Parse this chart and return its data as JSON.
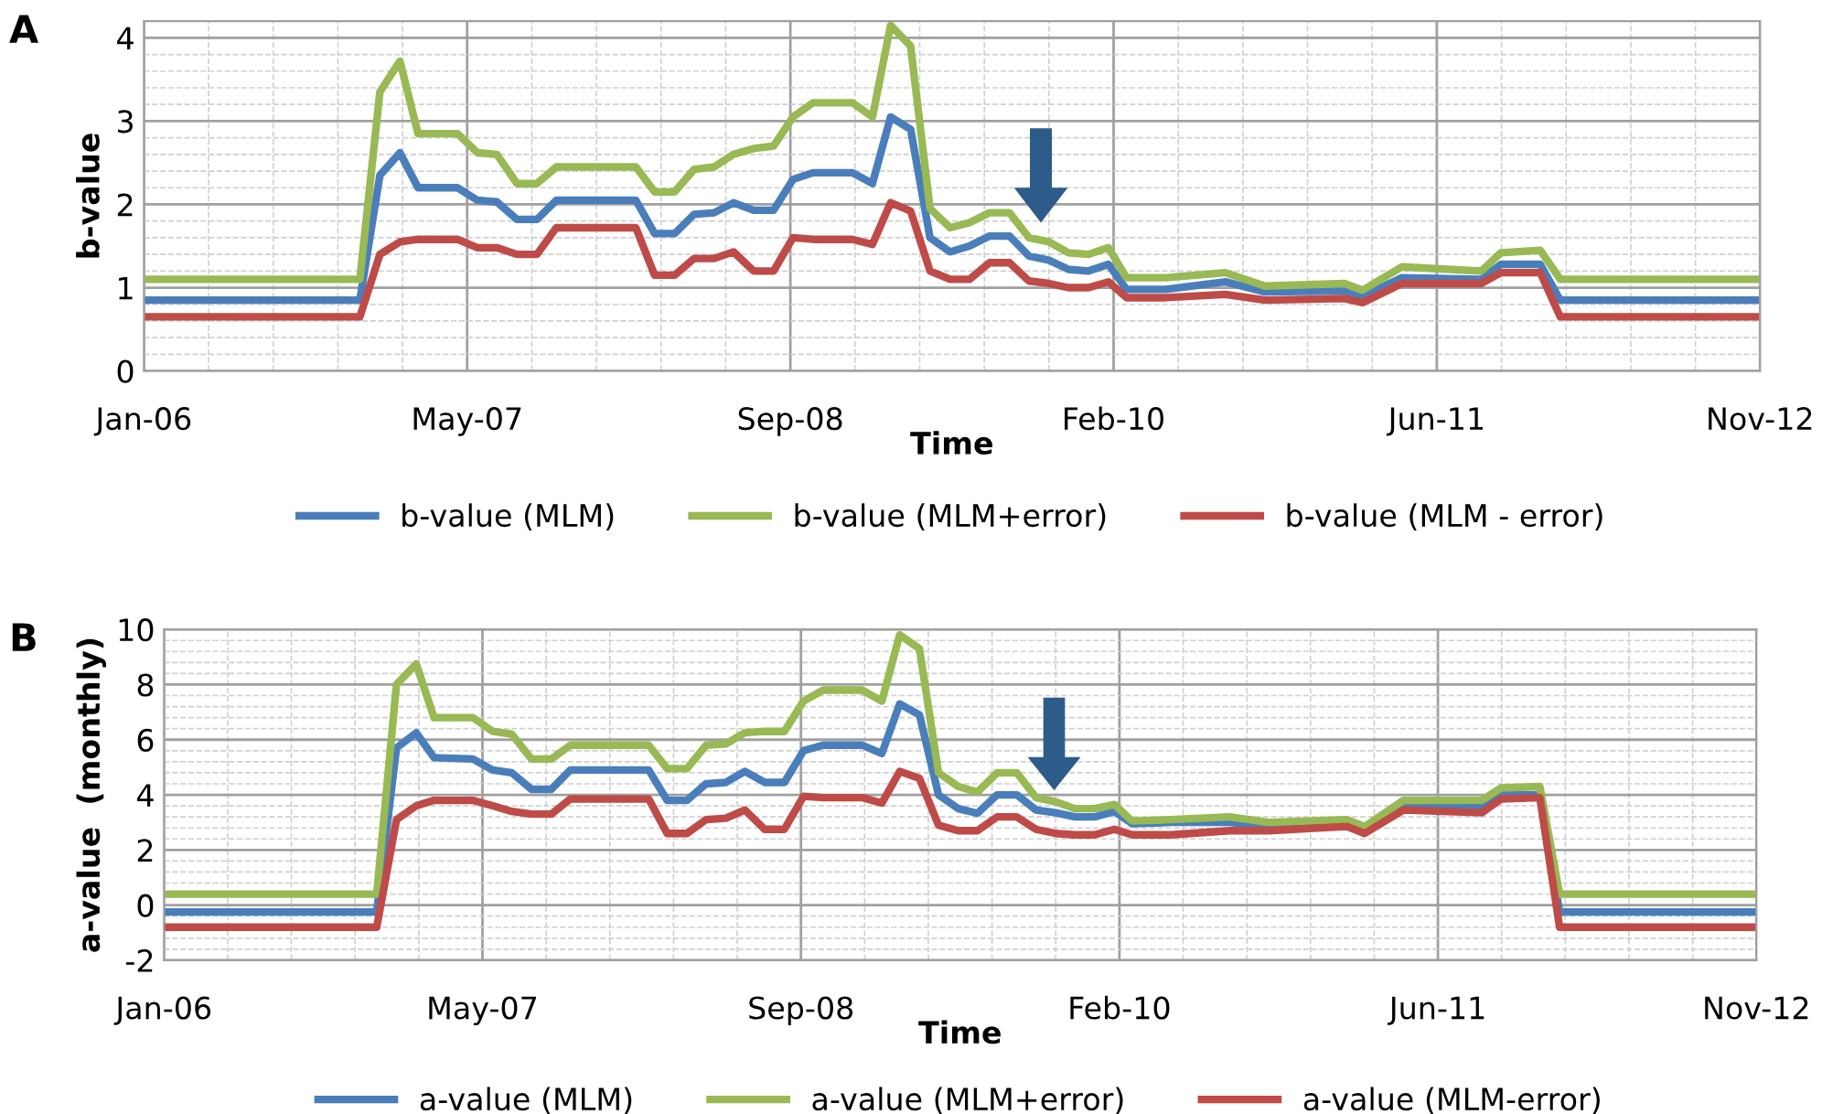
{
  "chart_data": [
    {
      "type": "line",
      "xlabel": "Time",
      "ylabel": "b-value",
      "annotations": [
        "A"
      ],
      "legend": "bottom",
      "grid": true,
      "marker": "none",
      "line_style": "solid",
      "x": [
        "2006-01",
        "2006-12",
        "2007-01",
        "2007-02",
        "2007-03",
        "2007-05",
        "2007-06",
        "2007-07",
        "2007-08",
        "2007-09",
        "2007-10",
        "2008-02",
        "2008-03",
        "2008-04",
        "2008-05",
        "2008-06",
        "2008-07",
        "2008-08",
        "2008-09",
        "2008-10",
        "2008-11",
        "2009-01",
        "2009-02",
        "2009-03",
        "2009-04",
        "2009-05",
        "2009-06",
        "2009-07",
        "2009-08",
        "2009-09",
        "2009-10",
        "2009-11",
        "2009-12",
        "2010-01",
        "2010-02",
        "2010-03",
        "2010-05",
        "2010-08",
        "2010-10",
        "2011-02",
        "2011-03",
        "2011-05",
        "2011-09",
        "2011-10",
        "2011-12",
        "2012-01",
        "2012-11"
      ],
      "xlim": [
        "2006-01-01",
        "2012-11-05"
      ],
      "xticks": [
        {
          "value": "2006-01-01",
          "label": "Jan-06"
        },
        {
          "value": "2007-05-16",
          "label": "May-07"
        },
        {
          "value": "2008-09-27",
          "label": "Sep-08"
        },
        {
          "value": "2010-02-09",
          "label": "Feb-10"
        },
        {
          "value": "2011-06-24",
          "label": "Jun-11"
        },
        {
          "value": "2012-11-05",
          "label": "Nov-12"
        }
      ],
      "ylim": [
        0,
        4.2
      ],
      "yticks": [
        0,
        1,
        2,
        3,
        4
      ],
      "series": [
        {
          "name": "b-value (MLM)",
          "color": "#4a7ebb",
          "values": [
            0.85,
            0.85,
            2.35,
            2.62,
            2.2,
            2.2,
            2.05,
            2.03,
            1.82,
            1.82,
            2.05,
            2.05,
            1.65,
            1.65,
            1.88,
            1.9,
            2.02,
            1.93,
            1.93,
            2.3,
            2.38,
            2.38,
            2.25,
            3.05,
            2.9,
            1.6,
            1.43,
            1.5,
            1.62,
            1.62,
            1.38,
            1.33,
            1.22,
            1.2,
            1.28,
            0.98,
            0.98,
            1.07,
            0.95,
            0.96,
            0.9,
            1.12,
            1.1,
            1.28,
            1.28,
            0.85,
            0.85
          ]
        },
        {
          "name": "b-value (MLM+error)",
          "color": "#98b954",
          "values": [
            1.1,
            1.1,
            3.35,
            3.72,
            2.85,
            2.85,
            2.62,
            2.6,
            2.25,
            2.25,
            2.45,
            2.45,
            2.15,
            2.15,
            2.42,
            2.45,
            2.6,
            2.67,
            2.7,
            3.05,
            3.22,
            3.22,
            3.05,
            4.15,
            3.9,
            1.95,
            1.72,
            1.78,
            1.9,
            1.9,
            1.6,
            1.55,
            1.42,
            1.4,
            1.48,
            1.12,
            1.12,
            1.18,
            1.02,
            1.05,
            0.97,
            1.25,
            1.2,
            1.42,
            1.45,
            1.1,
            1.1
          ]
        },
        {
          "name": "b-value (MLM - error)",
          "color": "#be4b48",
          "values": [
            0.65,
            0.65,
            1.4,
            1.55,
            1.58,
            1.58,
            1.48,
            1.48,
            1.4,
            1.4,
            1.72,
            1.72,
            1.15,
            1.15,
            1.35,
            1.35,
            1.43,
            1.2,
            1.2,
            1.6,
            1.58,
            1.58,
            1.52,
            2.02,
            1.92,
            1.2,
            1.1,
            1.1,
            1.3,
            1.3,
            1.08,
            1.05,
            1.0,
            1.0,
            1.07,
            0.88,
            0.88,
            0.92,
            0.85,
            0.87,
            0.82,
            1.05,
            1.05,
            1.18,
            1.18,
            0.65,
            0.65
          ]
        }
      ]
    },
    {
      "type": "line",
      "xlabel": "Time",
      "ylabel": "a-value  (monthly)",
      "annotations": [
        "B"
      ],
      "legend": "bottom",
      "grid": true,
      "marker": "none",
      "line_style": "solid",
      "x": [
        "2006-01",
        "2006-12",
        "2007-01",
        "2007-02",
        "2007-03",
        "2007-05",
        "2007-06",
        "2007-07",
        "2007-08",
        "2007-09",
        "2007-10",
        "2008-02",
        "2008-03",
        "2008-04",
        "2008-05",
        "2008-06",
        "2008-07",
        "2008-08",
        "2008-09",
        "2008-10",
        "2008-11",
        "2009-01",
        "2009-02",
        "2009-03",
        "2009-04",
        "2009-05",
        "2009-06",
        "2009-07",
        "2009-08",
        "2009-09",
        "2009-10",
        "2009-11",
        "2009-12",
        "2010-01",
        "2010-02",
        "2010-03",
        "2010-05",
        "2010-08",
        "2010-10",
        "2011-02",
        "2011-03",
        "2011-05",
        "2011-09",
        "2011-10",
        "2011-12",
        "2012-01",
        "2012-11"
      ],
      "xlim": [
        "2006-01-01",
        "2012-11-05"
      ],
      "xticks": [
        {
          "value": "2006-01-01",
          "label": "Jan-06"
        },
        {
          "value": "2007-05-16",
          "label": "May-07"
        },
        {
          "value": "2008-09-27",
          "label": "Sep-08"
        },
        {
          "value": "2010-02-09",
          "label": "Feb-10"
        },
        {
          "value": "2011-06-24",
          "label": "Jun-11"
        },
        {
          "value": "2012-11-05",
          "label": "Nov-12"
        }
      ],
      "ylim": [
        -2,
        10
      ],
      "yticks": [
        -2,
        0,
        2,
        4,
        6,
        8,
        10
      ],
      "series": [
        {
          "name": "a-value (MLM)",
          "color": "#4a7ebb",
          "values": [
            -0.25,
            -0.25,
            5.7,
            6.25,
            5.35,
            5.3,
            4.9,
            4.8,
            4.2,
            4.2,
            4.9,
            4.9,
            3.8,
            3.8,
            4.4,
            4.45,
            4.85,
            4.45,
            4.45,
            5.6,
            5.8,
            5.8,
            5.5,
            7.3,
            6.9,
            4.0,
            3.5,
            3.33,
            4.0,
            4.0,
            3.45,
            3.35,
            3.2,
            3.2,
            3.4,
            2.95,
            3.0,
            3.0,
            2.85,
            3.0,
            2.7,
            3.6,
            3.6,
            4.0,
            4.0,
            -0.25,
            -0.25
          ]
        },
        {
          "name": "a-value (MLM+error)",
          "color": "#98b954",
          "values": [
            0.4,
            0.4,
            8.0,
            8.75,
            6.8,
            6.8,
            6.3,
            6.2,
            5.3,
            5.3,
            5.8,
            5.8,
            4.95,
            4.95,
            5.8,
            5.85,
            6.25,
            6.3,
            6.3,
            7.4,
            7.8,
            7.8,
            7.4,
            9.8,
            9.3,
            4.8,
            4.3,
            4.1,
            4.8,
            4.8,
            3.9,
            3.75,
            3.5,
            3.5,
            3.65,
            3.05,
            3.1,
            3.2,
            3.0,
            3.1,
            2.85,
            3.8,
            3.8,
            4.25,
            4.3,
            0.4,
            0.4
          ]
        },
        {
          "name": "a-value (MLM-error)",
          "color": "#be4b48",
          "values": [
            -0.8,
            -0.8,
            3.1,
            3.6,
            3.8,
            3.8,
            3.6,
            3.4,
            3.3,
            3.3,
            3.85,
            3.85,
            2.6,
            2.6,
            3.1,
            3.15,
            3.45,
            2.75,
            2.75,
            3.95,
            3.9,
            3.9,
            3.7,
            4.85,
            4.6,
            2.9,
            2.7,
            2.7,
            3.2,
            3.2,
            2.75,
            2.6,
            2.55,
            2.55,
            2.75,
            2.55,
            2.55,
            2.7,
            2.7,
            2.85,
            2.6,
            3.45,
            3.35,
            3.85,
            3.9,
            -0.8,
            -0.8
          ]
        }
      ]
    }
  ]
}
